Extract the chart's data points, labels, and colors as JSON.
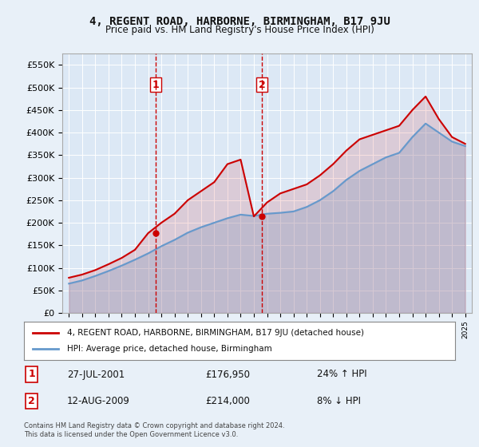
{
  "title": "4, REGENT ROAD, HARBORNE, BIRMINGHAM, B17 9JU",
  "subtitle": "Price paid vs. HM Land Registry's House Price Index (HPI)",
  "legend_label_red": "4, REGENT ROAD, HARBORNE, BIRMINGHAM, B17 9JU (detached house)",
  "legend_label_blue": "HPI: Average price, detached house, Birmingham",
  "footnote": "Contains HM Land Registry data © Crown copyright and database right 2024.\nThis data is licensed under the Open Government Licence v3.0.",
  "transactions": [
    {
      "label": "1",
      "date": "27-JUL-2001",
      "price": "£176,950",
      "hpi": "24% ↑ HPI",
      "year": 2001.57
    },
    {
      "label": "2",
      "date": "12-AUG-2009",
      "price": "£214,000",
      "hpi": "8% ↓ HPI",
      "year": 2009.62
    }
  ],
  "hpi_years": [
    1995,
    1996,
    1997,
    1998,
    1999,
    2000,
    2001,
    2002,
    2003,
    2004,
    2005,
    2006,
    2007,
    2008,
    2009,
    2010,
    2011,
    2012,
    2013,
    2014,
    2015,
    2016,
    2017,
    2018,
    2019,
    2020,
    2021,
    2022,
    2023,
    2024,
    2025
  ],
  "hpi_values": [
    65000,
    72000,
    82000,
    93000,
    105000,
    118000,
    132000,
    148000,
    162000,
    178000,
    190000,
    200000,
    210000,
    218000,
    215000,
    220000,
    222000,
    225000,
    235000,
    250000,
    270000,
    295000,
    315000,
    330000,
    345000,
    355000,
    390000,
    420000,
    400000,
    380000,
    370000
  ],
  "red_years": [
    1995,
    1996,
    1997,
    1998,
    1999,
    2000,
    2001,
    2002,
    2003,
    2004,
    2005,
    2006,
    2007,
    2008,
    2009,
    2010,
    2011,
    2012,
    2013,
    2014,
    2015,
    2016,
    2017,
    2018,
    2019,
    2020,
    2021,
    2022,
    2023,
    2024,
    2025
  ],
  "red_values": [
    78000,
    85000,
    95000,
    108000,
    122000,
    140000,
    176950,
    200000,
    220000,
    250000,
    270000,
    290000,
    330000,
    340000,
    214000,
    245000,
    265000,
    275000,
    285000,
    305000,
    330000,
    360000,
    385000,
    395000,
    405000,
    415000,
    450000,
    480000,
    430000,
    390000,
    375000
  ],
  "ylim": [
    0,
    575000
  ],
  "yticks": [
    0,
    50000,
    100000,
    150000,
    200000,
    250000,
    300000,
    350000,
    400000,
    450000,
    500000,
    550000
  ],
  "xlim": [
    1994.5,
    2025.5
  ],
  "bg_color": "#e8f0f8",
  "plot_bg": "#dce8f5",
  "red_color": "#cc0000",
  "blue_color": "#6699cc",
  "vline_color": "#cc0000",
  "grid_color": "#ffffff"
}
